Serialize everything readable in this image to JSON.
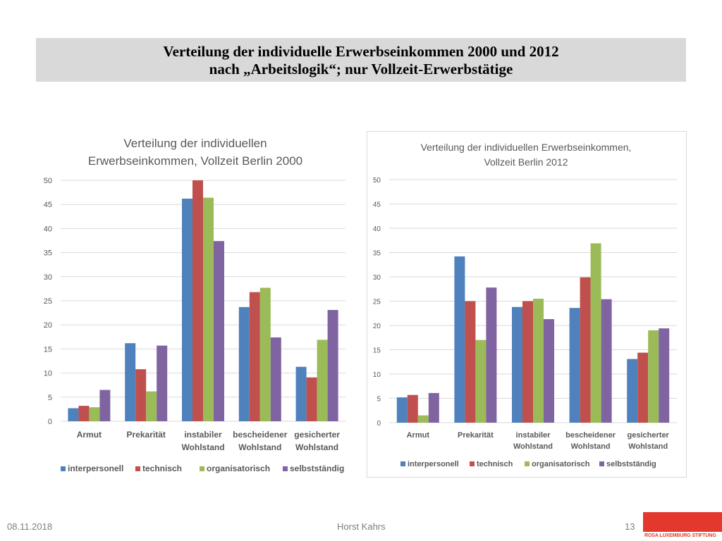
{
  "slide": {
    "title_line1": "Verteilung der individuelle Erwerbseinkommen 2000 und 2012",
    "title_line2": "nach „Arbeitslogik“; nur Vollzeit-Erwerbstätige",
    "footer_date": "08.11.2018",
    "footer_author": "Horst Kahrs",
    "footer_page": "13",
    "logo_text": "ROSA LUXEMBURG STIFTUNG"
  },
  "colors": {
    "interpersonell": "#4f81bd",
    "technisch": "#c0504d",
    "organisatorisch": "#9bbb59",
    "selbststaendig": "#8064a2",
    "gridline": "#d9d9d9",
    "title_text": "#595959",
    "axis_text": "#595959",
    "logo_red": "#e2392c"
  },
  "chart_data": [
    {
      "type": "bar",
      "title_lines": [
        "Verteilung der individuellen",
        "Erwerbseinkommen, Vollzeit Berlin 2000"
      ],
      "categories": [
        [
          "Armut"
        ],
        [
          "Prekarität"
        ],
        [
          "instabiler",
          "Wohlstand"
        ],
        [
          "bescheidener",
          "Wohlstand"
        ],
        [
          "gesicherter",
          "Wohlstand"
        ]
      ],
      "ylim": [
        0,
        50
      ],
      "yticks": [
        0,
        5,
        10,
        15,
        20,
        25,
        30,
        35,
        40,
        45,
        50
      ],
      "grid": true,
      "legend_position": "bottom",
      "series": [
        {
          "name": "interpersonell",
          "values": [
            2.7,
            16.2,
            46.2,
            23.7,
            11.3
          ]
        },
        {
          "name": "technisch",
          "values": [
            3.2,
            10.8,
            50.0,
            26.8,
            9.1
          ]
        },
        {
          "name": "organisatorisch",
          "values": [
            2.9,
            6.2,
            46.4,
            27.7,
            16.9
          ]
        },
        {
          "name": "selbstständig",
          "values": [
            6.5,
            15.7,
            37.4,
            17.4,
            23.1
          ]
        }
      ]
    },
    {
      "type": "bar",
      "title_lines": [
        "Verteilung der individuellen Erwerbseinkommen,",
        "Vollzeit Berlin 2012"
      ],
      "categories": [
        [
          "Armut"
        ],
        [
          "Prekarität"
        ],
        [
          "instabiler",
          "Wohlstand"
        ],
        [
          "bescheidener",
          "Wohlstand"
        ],
        [
          "gesicherter",
          "Wohlstand"
        ]
      ],
      "ylim": [
        0,
        50
      ],
      "yticks": [
        0,
        5,
        10,
        15,
        20,
        25,
        30,
        35,
        40,
        45,
        50
      ],
      "grid": true,
      "legend_position": "bottom",
      "series": [
        {
          "name": "interpersonell",
          "values": [
            5.2,
            34.2,
            23.8,
            23.6,
            13.1
          ]
        },
        {
          "name": "technisch",
          "values": [
            5.7,
            25.0,
            25.0,
            29.9,
            14.4
          ]
        },
        {
          "name": "organisatorisch",
          "values": [
            1.5,
            17.0,
            25.5,
            36.9,
            19.0
          ]
        },
        {
          "name": "selbstständig",
          "values": [
            6.1,
            27.8,
            21.3,
            25.4,
            19.4
          ]
        }
      ]
    }
  ]
}
